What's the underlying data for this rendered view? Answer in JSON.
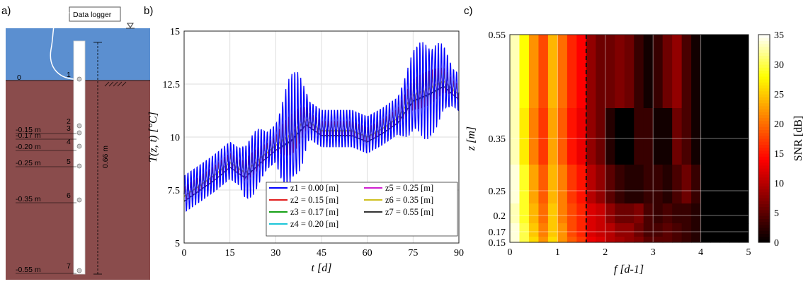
{
  "panels": {
    "a": "a)",
    "b": "b)",
    "c": "c)"
  },
  "sketch": {
    "logger_label": "Data logger",
    "surface_label": "0",
    "length_label": "0.66 m",
    "sensor_numbers": [
      "1",
      "2",
      "3",
      "4",
      "5",
      "6",
      "7"
    ],
    "depth_labels": [
      "-0.15 m",
      "-0.17 m",
      "-0.20 m",
      "-0.25 m",
      "-0.35 m",
      "-0.55 m"
    ],
    "colors": {
      "water": "#5b8fd0",
      "sediment": "#8a4c4c",
      "rod": "#ffffff"
    }
  },
  "chart_data": [
    {
      "type": "line",
      "id": "temperature",
      "xlabel": "t [d]",
      "ylabel": "T(z, t) [°C]",
      "xlim": [
        0,
        90
      ],
      "ylim": [
        5,
        15
      ],
      "xticks": [
        "0",
        "15",
        "30",
        "45",
        "60",
        "75",
        "90"
      ],
      "yticks": [
        "5",
        "7.5",
        "10",
        "12.5",
        "15"
      ],
      "grid": true,
      "legend_position": "bottom-right",
      "series": [
        {
          "name": "z1 = 0.00 [m]",
          "color": "#0000ff",
          "amp": 0.9
        },
        {
          "name": "z2 = 0.15 [m]",
          "color": "#e11d1d",
          "amp": 0.35
        },
        {
          "name": "z3 = 0.17 [m]",
          "color": "#16a016",
          "amp": 0.28
        },
        {
          "name": "z4 = 0.20 [m]",
          "color": "#1cc6d8",
          "amp": 0.22
        },
        {
          "name": "z5 = 0.25 [m]",
          "color": "#d020d0",
          "amp": 0.15
        },
        {
          "name": "z6 = 0.35 [m]",
          "color": "#cfc020",
          "amp": 0.07
        },
        {
          "name": "z7 = 0.55 [m]",
          "color": "#333333",
          "amp": 0.03
        }
      ],
      "trend": {
        "x": [
          0,
          5,
          10,
          15,
          20,
          25,
          30,
          35,
          40,
          45,
          50,
          55,
          60,
          65,
          70,
          75,
          80,
          85,
          90
        ],
        "y": [
          7.3,
          7.8,
          8.3,
          8.9,
          8.4,
          9.1,
          9.7,
          10.1,
          10.9,
          10.4,
          10.4,
          10.4,
          10.1,
          10.5,
          11.0,
          12.0,
          12.3,
          12.7,
          12.1
        ]
      }
    },
    {
      "type": "heatmap",
      "id": "snr",
      "xlabel": "f [d-1]",
      "ylabel": "z [m]",
      "xlim": [
        0,
        5
      ],
      "xticks": [
        "0",
        "1",
        "2",
        "3",
        "4",
        "5"
      ],
      "yticks": [
        "0.55",
        "0.35",
        "0.25",
        "0.2",
        "0.17",
        "0.15"
      ],
      "depths": [
        0.15,
        0.17,
        0.2,
        0.25,
        0.35,
        0.55
      ],
      "colorbar": {
        "label": "SNR [dB]",
        "min": 0,
        "max": 35,
        "ticks": [
          "0",
          "5",
          "10",
          "15",
          "20",
          "25",
          "30",
          "35"
        ]
      },
      "dashed_line_f": 1.6,
      "freqs": [
        0.1,
        0.3,
        0.5,
        0.7,
        0.9,
        1.1,
        1.3,
        1.5,
        1.7,
        1.9,
        2.1,
        2.3,
        2.5,
        2.7,
        2.9,
        3.1,
        3.3,
        3.5,
        3.7,
        3.9,
        4.1,
        4.3,
        4.5,
        4.7,
        4.9
      ],
      "rows": [
        {
          "z": 0.55,
          "snr": [
            33,
            28,
            22,
            18,
            24,
            20,
            16,
            14,
            8,
            6,
            6,
            7,
            6,
            3,
            1,
            3,
            6,
            8,
            4,
            1,
            0,
            0,
            0,
            0,
            0
          ]
        },
        {
          "z": 0.35,
          "snr": [
            33,
            27,
            21,
            17,
            23,
            19,
            15,
            13,
            8,
            6,
            2,
            0,
            0,
            3,
            3,
            1,
            1,
            6,
            4,
            1,
            0,
            0,
            0,
            0,
            0
          ]
        },
        {
          "z": 0.25,
          "snr": [
            34,
            29,
            23,
            19,
            24,
            21,
            17,
            15,
            10,
            8,
            5,
            3,
            2,
            2,
            3,
            3,
            2,
            4,
            6,
            3,
            0,
            0,
            0,
            0,
            0
          ]
        },
        {
          "z": 0.2,
          "snr": [
            33,
            29,
            24,
            20,
            25,
            21,
            18,
            16,
            12,
            11,
            8,
            6,
            6,
            7,
            4,
            3,
            4,
            3,
            3,
            2,
            0,
            0,
            0,
            0,
            0
          ]
        },
        {
          "z": 0.17,
          "snr": [
            34,
            30,
            25,
            21,
            25,
            22,
            18,
            16,
            12,
            11,
            10,
            8,
            8,
            6,
            4,
            4,
            5,
            4,
            3,
            2,
            0,
            0,
            0,
            0,
            0
          ]
        },
        {
          "z": 0.15,
          "snr": [
            34,
            30,
            26,
            22,
            26,
            22,
            19,
            17,
            13,
            12,
            10,
            9,
            8,
            7,
            5,
            5,
            5,
            4,
            3,
            2,
            0,
            0,
            0,
            0,
            0
          ]
        }
      ]
    }
  ]
}
